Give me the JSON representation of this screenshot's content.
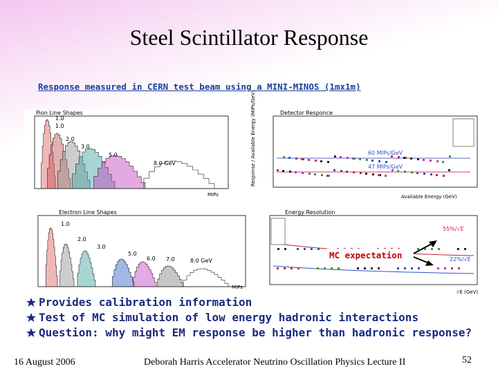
{
  "title": "Steel Scintillator Response",
  "subtitle": "Response measured in CERN test beam using a MINI-MINOS (1mx1m)",
  "plots": {
    "pion": {
      "title": "Pion Line Shapes",
      "labels": [
        "1.0",
        "1.0",
        "2.0",
        "3.0",
        "5.0",
        "8.0 GeV"
      ],
      "xlabel": "MIPs"
    },
    "detector": {
      "title": "Detector Responce",
      "ylabel": "Response / Available Energy (MIPs/GeV)",
      "xlabel": "Available Energy (GeV)",
      "notes": [
        "60 MIPs/GeV",
        "47 MIPs/GeV"
      ]
    },
    "electron": {
      "title": "Electron Line Shapes",
      "labels": [
        "1.0",
        "2.0",
        "3.0",
        "5.0",
        "6.0",
        "7.0",
        "8.0 GeV"
      ],
      "xlabel": "MIPs"
    },
    "resolution": {
      "title": "Energy Resolution",
      "notes": [
        "55%/√E",
        "22%/√E"
      ],
      "xlabel": "√E (GeV)"
    }
  },
  "callout": "MC expectation",
  "bullets": [
    "Provides calibration information",
    "Test of MC simulation of low energy hadronic interactions",
    "Question:  why might EM response be higher than hadronic response?"
  ],
  "footer": {
    "date": "16 August 2006",
    "author": "Deborah Harris Accelerator Neutrino Oscillation Physics Lecture II",
    "page": "52"
  }
}
